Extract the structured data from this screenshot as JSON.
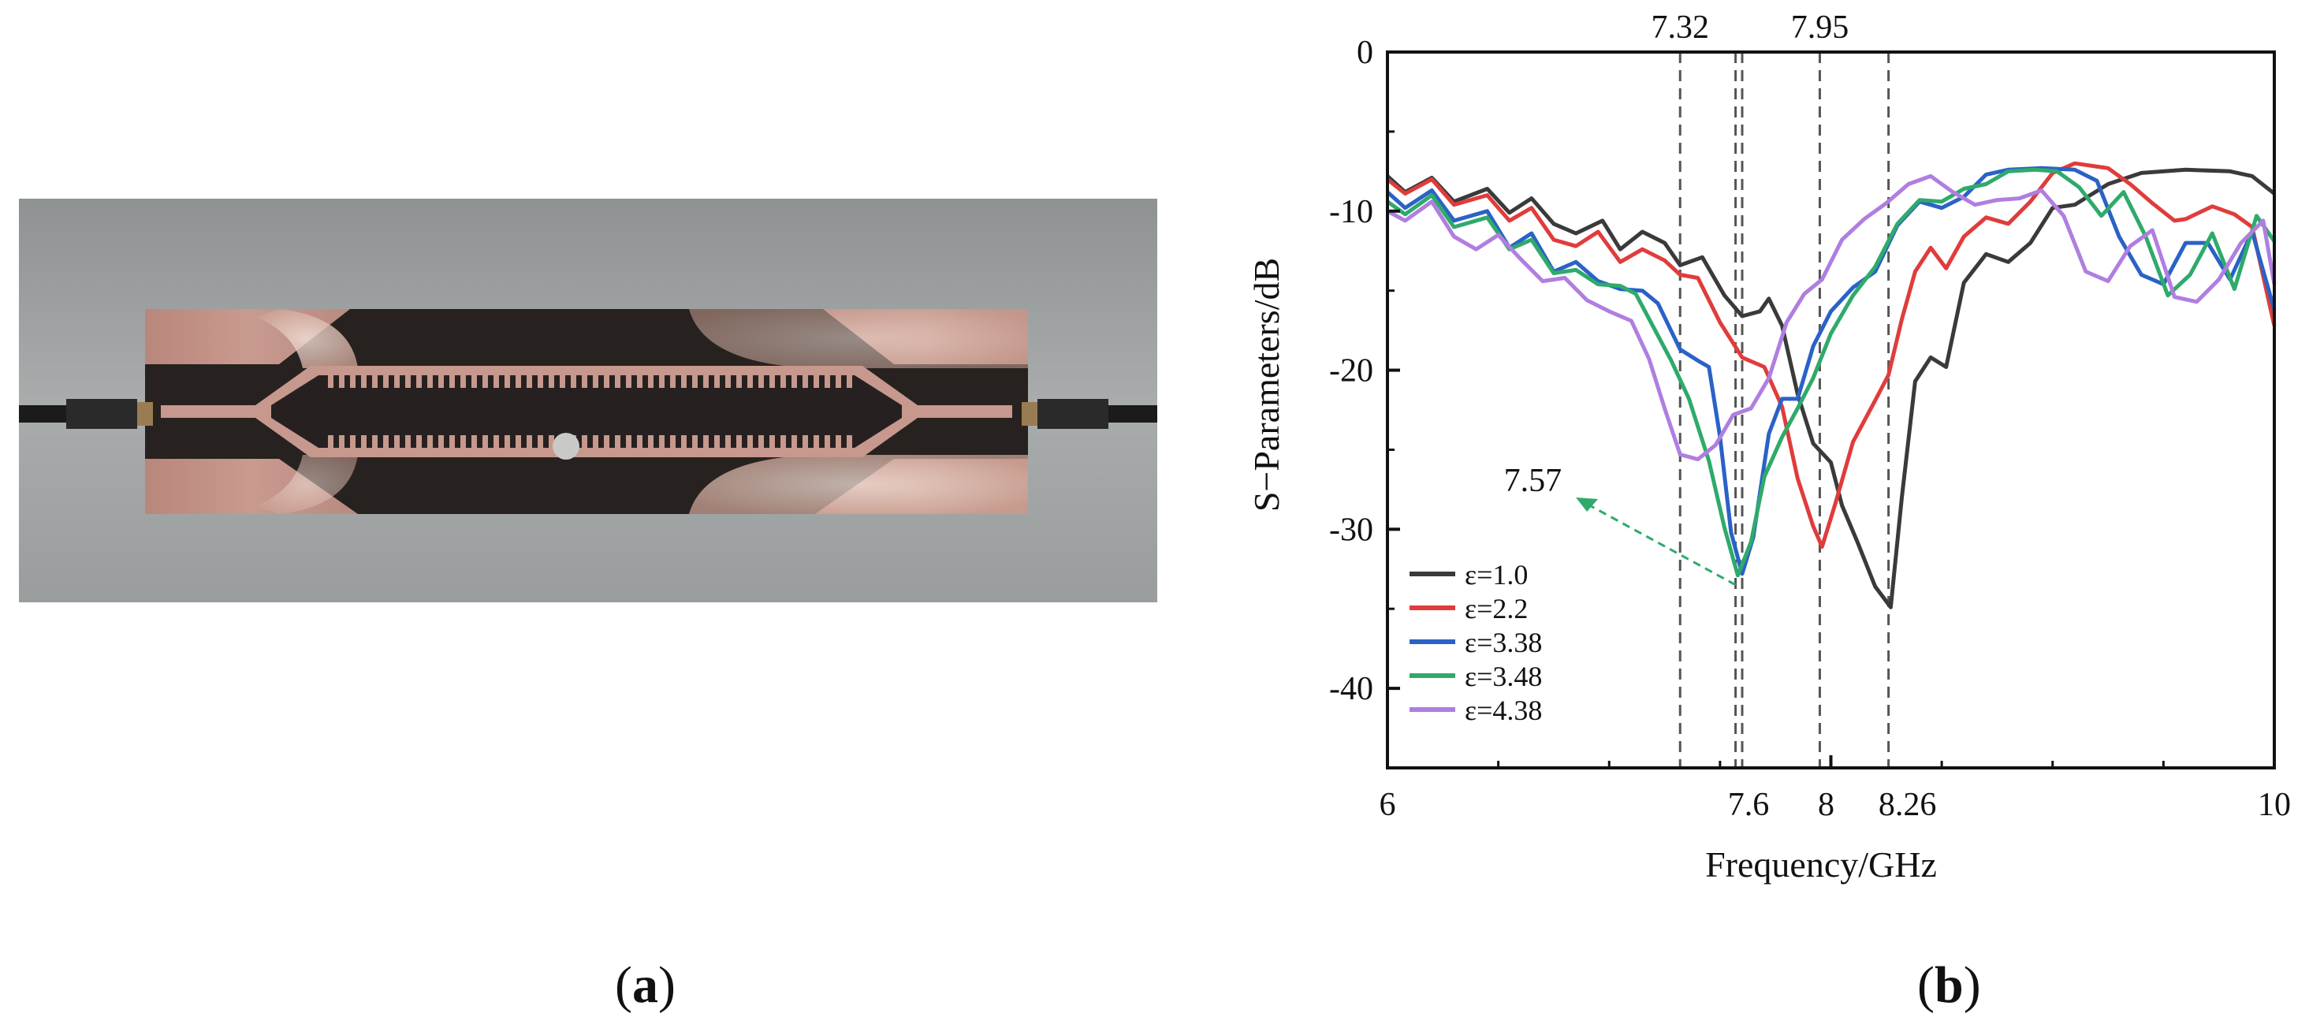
{
  "figure": {
    "panel_a_label": "a",
    "panel_b_label": "b"
  },
  "photo": {
    "subject": "fabricated microstrip sensor board",
    "colors": {
      "background": "#9c9fa0",
      "substrate": "#25211f",
      "copper": "#c4958a",
      "copper_light": "#e6c4b7",
      "sample": "#c9c9c7"
    }
  },
  "chart_data": {
    "type": "line",
    "title": "",
    "xlabel": "Frequency/GHz",
    "ylabel": "S−Parameters/dB",
    "xlim": [
      6,
      10
    ],
    "ylim": [
      -45,
      0
    ],
    "x_ticks": [
      {
        "value": 6,
        "label": "6"
      },
      {
        "value": 7.6,
        "label": "7.6"
      },
      {
        "value": 8,
        "label": "8"
      },
      {
        "value": 8.26,
        "label": "8.26"
      },
      {
        "value": 10,
        "label": "10"
      }
    ],
    "x_minor_ticks": [
      6.5,
      7,
      7.5,
      8.5,
      9,
      9.5
    ],
    "y_ticks": [
      0,
      -10,
      -20,
      -30,
      -40
    ],
    "y_tick_labels": [
      "0",
      "-10",
      "-20",
      "-30",
      "-40"
    ],
    "top_labels": [
      {
        "value": 7.32,
        "label": "7.32"
      },
      {
        "value": 7.95,
        "label": "7.95"
      }
    ],
    "vertical_markers": [
      7.32,
      7.57,
      7.6,
      7.95,
      8.26
    ],
    "annotation": {
      "text": "7.57",
      "points_to": [
        7.57,
        -33
      ]
    },
    "legend_position": "bottom-left",
    "grid": false,
    "series": [
      {
        "name": "ε=1.0",
        "color": "#3a3a3a",
        "points": [
          [
            6.0,
            -7.8
          ],
          [
            6.08,
            -8.8
          ],
          [
            6.2,
            -7.9
          ],
          [
            6.3,
            -9.4
          ],
          [
            6.45,
            -8.6
          ],
          [
            6.55,
            -10.1
          ],
          [
            6.65,
            -9.2
          ],
          [
            6.75,
            -10.8
          ],
          [
            6.85,
            -11.4
          ],
          [
            6.97,
            -10.6
          ],
          [
            7.05,
            -12.4
          ],
          [
            7.15,
            -11.3
          ],
          [
            7.25,
            -12.0
          ],
          [
            7.32,
            -13.4
          ],
          [
            7.42,
            -12.9
          ],
          [
            7.52,
            -15.3
          ],
          [
            7.6,
            -16.6
          ],
          [
            7.68,
            -16.3
          ],
          [
            7.72,
            -15.5
          ],
          [
            7.78,
            -17.2
          ],
          [
            7.85,
            -21.5
          ],
          [
            7.92,
            -24.6
          ],
          [
            8.0,
            -25.8
          ],
          [
            8.05,
            -28.5
          ],
          [
            8.12,
            -30.8
          ],
          [
            8.2,
            -33.6
          ],
          [
            8.27,
            -34.9
          ],
          [
            8.32,
            -28.0
          ],
          [
            8.38,
            -20.7
          ],
          [
            8.45,
            -19.2
          ],
          [
            8.52,
            -19.8
          ],
          [
            8.6,
            -14.5
          ],
          [
            8.7,
            -12.7
          ],
          [
            8.8,
            -13.2
          ],
          [
            8.9,
            -12.0
          ],
          [
            9.0,
            -9.8
          ],
          [
            9.1,
            -9.6
          ],
          [
            9.25,
            -8.3
          ],
          [
            9.4,
            -7.6
          ],
          [
            9.6,
            -7.4
          ],
          [
            9.8,
            -7.5
          ],
          [
            9.9,
            -7.8
          ],
          [
            10.0,
            -8.9
          ]
        ]
      },
      {
        "name": "ε=2.2",
        "color": "#e03c3c",
        "points": [
          [
            6.0,
            -8.0
          ],
          [
            6.08,
            -8.9
          ],
          [
            6.2,
            -8.0
          ],
          [
            6.3,
            -9.6
          ],
          [
            6.45,
            -9.0
          ],
          [
            6.55,
            -10.6
          ],
          [
            6.65,
            -9.8
          ],
          [
            6.75,
            -11.8
          ],
          [
            6.85,
            -12.2
          ],
          [
            6.95,
            -11.3
          ],
          [
            7.05,
            -13.2
          ],
          [
            7.15,
            -12.4
          ],
          [
            7.25,
            -13.1
          ],
          [
            7.32,
            -14.0
          ],
          [
            7.4,
            -14.2
          ],
          [
            7.5,
            -17.0
          ],
          [
            7.6,
            -19.2
          ],
          [
            7.7,
            -19.8
          ],
          [
            7.78,
            -22.3
          ],
          [
            7.85,
            -26.8
          ],
          [
            7.92,
            -29.8
          ],
          [
            7.96,
            -31.1
          ],
          [
            8.02,
            -28.4
          ],
          [
            8.1,
            -24.5
          ],
          [
            8.2,
            -21.9
          ],
          [
            8.26,
            -20.3
          ],
          [
            8.32,
            -16.8
          ],
          [
            8.38,
            -13.8
          ],
          [
            8.45,
            -12.3
          ],
          [
            8.52,
            -13.6
          ],
          [
            8.6,
            -11.6
          ],
          [
            8.7,
            -10.4
          ],
          [
            8.8,
            -10.8
          ],
          [
            8.9,
            -9.4
          ],
          [
            9.0,
            -7.6
          ],
          [
            9.1,
            -7.0
          ],
          [
            9.25,
            -7.3
          ],
          [
            9.35,
            -8.3
          ],
          [
            9.45,
            -9.5
          ],
          [
            9.55,
            -10.6
          ],
          [
            9.6,
            -10.5
          ],
          [
            9.72,
            -9.7
          ],
          [
            9.82,
            -10.2
          ],
          [
            9.9,
            -11.0
          ],
          [
            10.0,
            -17.2
          ]
        ]
      },
      {
        "name": "ε=3.38",
        "color": "#2a62c6",
        "points": [
          [
            6.0,
            -8.8
          ],
          [
            6.08,
            -9.8
          ],
          [
            6.2,
            -8.7
          ],
          [
            6.3,
            -10.6
          ],
          [
            6.45,
            -10.0
          ],
          [
            6.55,
            -12.3
          ],
          [
            6.65,
            -11.4
          ],
          [
            6.75,
            -13.8
          ],
          [
            6.85,
            -13.2
          ],
          [
            6.95,
            -14.4
          ],
          [
            7.05,
            -14.9
          ],
          [
            7.15,
            -15.0
          ],
          [
            7.22,
            -15.8
          ],
          [
            7.32,
            -18.7
          ],
          [
            7.4,
            -19.4
          ],
          [
            7.45,
            -19.8
          ],
          [
            7.5,
            -24.2
          ],
          [
            7.55,
            -30.2
          ],
          [
            7.6,
            -32.8
          ],
          [
            7.65,
            -30.5
          ],
          [
            7.72,
            -24.0
          ],
          [
            7.78,
            -21.8
          ],
          [
            7.85,
            -21.8
          ],
          [
            7.92,
            -18.5
          ],
          [
            8.0,
            -16.3
          ],
          [
            8.1,
            -14.8
          ],
          [
            8.2,
            -13.8
          ],
          [
            8.3,
            -10.9
          ],
          [
            8.4,
            -9.4
          ],
          [
            8.5,
            -9.8
          ],
          [
            8.6,
            -9.1
          ],
          [
            8.7,
            -7.7
          ],
          [
            8.8,
            -7.4
          ],
          [
            8.95,
            -7.3
          ],
          [
            9.1,
            -7.4
          ],
          [
            9.2,
            -8.1
          ],
          [
            9.3,
            -11.6
          ],
          [
            9.4,
            -14.0
          ],
          [
            9.5,
            -14.6
          ],
          [
            9.6,
            -12.0
          ],
          [
            9.7,
            -12.0
          ],
          [
            9.8,
            -14.3
          ],
          [
            9.9,
            -11.3
          ],
          [
            10.0,
            -16.2
          ]
        ]
      },
      {
        "name": "ε=3.48",
        "color": "#2faa6b",
        "points": [
          [
            6.0,
            -9.4
          ],
          [
            6.08,
            -10.2
          ],
          [
            6.2,
            -9.0
          ],
          [
            6.3,
            -11.0
          ],
          [
            6.45,
            -10.4
          ],
          [
            6.55,
            -12.4
          ],
          [
            6.65,
            -11.8
          ],
          [
            6.75,
            -13.9
          ],
          [
            6.85,
            -13.7
          ],
          [
            6.95,
            -14.6
          ],
          [
            7.05,
            -14.7
          ],
          [
            7.12,
            -15.2
          ],
          [
            7.2,
            -17.3
          ],
          [
            7.28,
            -19.4
          ],
          [
            7.36,
            -21.8
          ],
          [
            7.45,
            -25.7
          ],
          [
            7.52,
            -29.9
          ],
          [
            7.58,
            -32.9
          ],
          [
            7.64,
            -30.8
          ],
          [
            7.7,
            -26.7
          ],
          [
            7.78,
            -24.2
          ],
          [
            7.85,
            -22.4
          ],
          [
            7.92,
            -20.5
          ],
          [
            8.0,
            -17.7
          ],
          [
            8.1,
            -15.3
          ],
          [
            8.2,
            -13.5
          ],
          [
            8.3,
            -10.8
          ],
          [
            8.4,
            -9.3
          ],
          [
            8.5,
            -9.4
          ],
          [
            8.6,
            -8.6
          ],
          [
            8.7,
            -8.3
          ],
          [
            8.8,
            -7.5
          ],
          [
            8.92,
            -7.4
          ],
          [
            9.02,
            -7.5
          ],
          [
            9.12,
            -8.5
          ],
          [
            9.22,
            -10.3
          ],
          [
            9.32,
            -8.8
          ],
          [
            9.42,
            -11.6
          ],
          [
            9.52,
            -15.3
          ],
          [
            9.62,
            -14.0
          ],
          [
            9.72,
            -11.4
          ],
          [
            9.82,
            -14.9
          ],
          [
            9.92,
            -10.3
          ],
          [
            10.0,
            -11.9
          ]
        ]
      },
      {
        "name": "ε=4.38",
        "color": "#b07ee0",
        "points": [
          [
            6.0,
            -10.0
          ],
          [
            6.08,
            -10.6
          ],
          [
            6.2,
            -9.4
          ],
          [
            6.3,
            -11.6
          ],
          [
            6.4,
            -12.4
          ],
          [
            6.5,
            -11.5
          ],
          [
            6.6,
            -13.0
          ],
          [
            6.7,
            -14.4
          ],
          [
            6.8,
            -14.2
          ],
          [
            6.9,
            -15.6
          ],
          [
            7.0,
            -16.3
          ],
          [
            7.1,
            -16.9
          ],
          [
            7.18,
            -19.3
          ],
          [
            7.25,
            -22.4
          ],
          [
            7.32,
            -25.3
          ],
          [
            7.4,
            -25.6
          ],
          [
            7.48,
            -24.7
          ],
          [
            7.56,
            -22.8
          ],
          [
            7.64,
            -22.4
          ],
          [
            7.72,
            -20.5
          ],
          [
            7.8,
            -17.0
          ],
          [
            7.88,
            -15.2
          ],
          [
            7.96,
            -14.3
          ],
          [
            8.05,
            -11.8
          ],
          [
            8.15,
            -10.5
          ],
          [
            8.25,
            -9.5
          ],
          [
            8.35,
            -8.3
          ],
          [
            8.45,
            -7.8
          ],
          [
            8.55,
            -8.8
          ],
          [
            8.65,
            -9.6
          ],
          [
            8.75,
            -9.3
          ],
          [
            8.85,
            -9.2
          ],
          [
            8.95,
            -8.7
          ],
          [
            9.05,
            -10.3
          ],
          [
            9.15,
            -13.8
          ],
          [
            9.25,
            -14.4
          ],
          [
            9.35,
            -12.2
          ],
          [
            9.45,
            -11.2
          ],
          [
            9.55,
            -15.4
          ],
          [
            9.65,
            -15.7
          ],
          [
            9.75,
            -14.3
          ],
          [
            9.85,
            -12.0
          ],
          [
            9.95,
            -10.6
          ],
          [
            10.0,
            -14.6
          ]
        ]
      }
    ]
  }
}
